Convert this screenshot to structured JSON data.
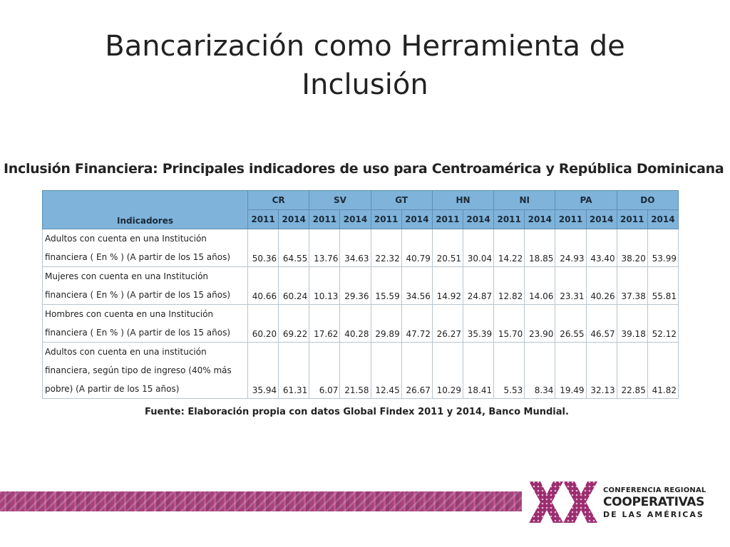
{
  "slide": {
    "title": "Bancarización como Herramienta de Inclusión"
  },
  "table": {
    "heading": "Inclusión Financiera: Principales indicadores de uso para Centroamérica y República Dominicana",
    "indicator_header": "Indicadores",
    "countries": [
      "CR",
      "SV",
      "GT",
      "HN",
      "NI",
      "PA",
      "DO"
    ],
    "years": [
      "2011",
      "2014"
    ],
    "rows": [
      {
        "label": "Adultos con cuenta en una Institución\nfinanciera ( En % ) (A partir de los 15 años)",
        "values": [
          "50.36",
          "64.55",
          "13.76",
          "34.63",
          "22.32",
          "40.79",
          "20.51",
          "30.04",
          "14.22",
          "18.85",
          "24.93",
          "43.40",
          "38.20",
          "53.99"
        ]
      },
      {
        "label": "Mujeres con cuenta en una Institución\nfinanciera ( En % ) (A partir de los 15 años)",
        "values": [
          "40.66",
          "60.24",
          "10.13",
          "29.36",
          "15.59",
          "34.56",
          "14.92",
          "24.87",
          "12.82",
          "14.06",
          "23.31",
          "40.26",
          "37.38",
          "55.81"
        ]
      },
      {
        "label": "Hombres con cuenta en una Institución\nfinanciera ( En % ) (A partir de los 15 años)",
        "values": [
          "60.20",
          "69.22",
          "17.62",
          "40.28",
          "29.89",
          "47.72",
          "26.27",
          "35.39",
          "15.70",
          "23.90",
          "26.55",
          "46.57",
          "39.18",
          "52.12"
        ]
      },
      {
        "label": "Adultos con cuenta en una institución\nfinanciera, según tipo de ingreso (40% más\npobre) (A partir de los 15 años)",
        "values": [
          "35.94",
          "61.31",
          "6.07",
          "21.58",
          "12.45",
          "26.67",
          "10.29",
          "18.41",
          "5.53",
          "8.34",
          "19.49",
          "32.13",
          "22.85",
          "41.82"
        ]
      }
    ],
    "source": "Fuente: Elaboración propia con datos Global Findex 2011 y 2014, Banco Mundial."
  },
  "branding": {
    "line1": "CONFERENCIA REGIONAL",
    "line2": "COOPERATIVAS",
    "line3": "DE LAS AMÉRICAS",
    "logo_icon": "roman-numeral-xx-pattern-icon",
    "colors": {
      "magenta": "#9b2d6f",
      "header_blue": "#7fb3d9"
    }
  }
}
